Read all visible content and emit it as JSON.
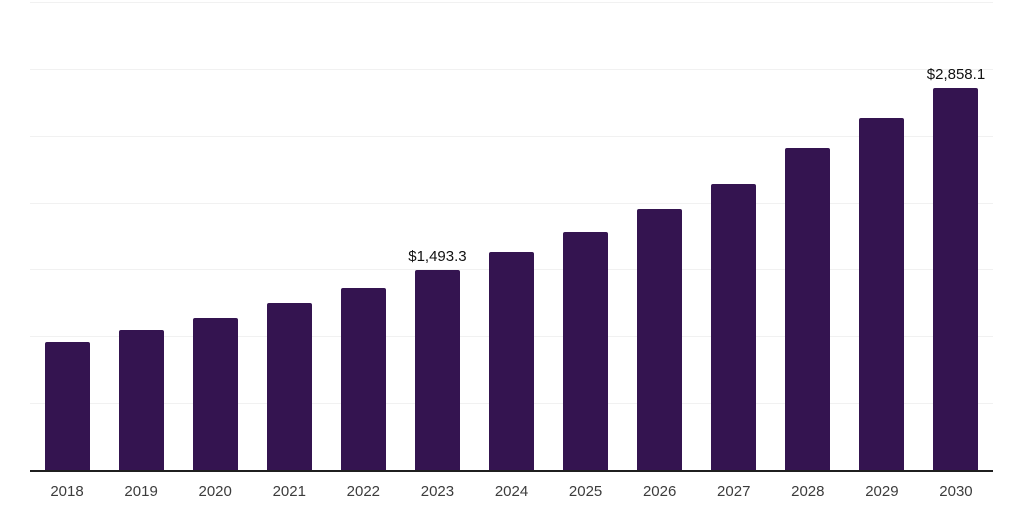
{
  "chart_data": {
    "type": "bar",
    "title": "",
    "xlabel": "",
    "ylabel": "",
    "categories": [
      "2018",
      "2019",
      "2020",
      "2021",
      "2022",
      "2023",
      "2024",
      "2025",
      "2026",
      "2027",
      "2028",
      "2029",
      "2030"
    ],
    "values": [
      955.5,
      1045.0,
      1138.4,
      1246.6,
      1362.3,
      1493.3,
      1631.0,
      1784.0,
      1953.5,
      2140.1,
      2405.8,
      2629.8,
      2858.1
    ],
    "value_labels": {
      "2023": "$1,493.3",
      "2030": "$2,858.1"
    },
    "ylim": [
      0,
      3500
    ],
    "gridline_step": 500,
    "grid": "horizontal-only",
    "y_tick_labels": "none",
    "legend_position": "none",
    "colors": {
      "bar": "#341450",
      "gridline": "#f1f1f1",
      "axis_line": "#1f1f1f",
      "tick_label": "#3c3c3c",
      "value_label": "#111111",
      "background": "#ffffff"
    }
  }
}
